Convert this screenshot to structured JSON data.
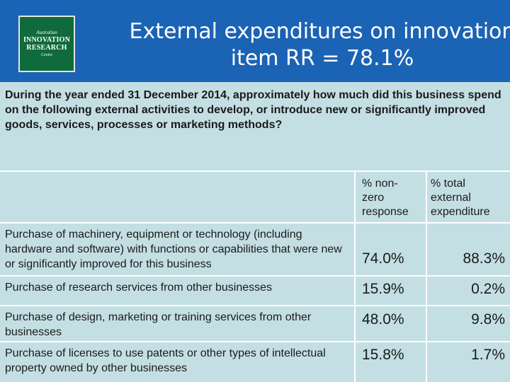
{
  "header": {
    "logo": {
      "line_top": "Australian",
      "line_mid1": "INNOVATION",
      "line_mid2": "RESEARCH",
      "line_bottom": "Centre"
    },
    "title_line1": "External expenditures on innovation",
    "title_line2": "item RR = 78.1%"
  },
  "question": "During the year ended 31 December 2014, approximately how much did this business spend on the following external activities to develop, or introduce new or significantly improved goods, services, processes or marketing methods?",
  "table": {
    "columns": [
      {
        "line1": "% non-",
        "line2": "zero",
        "line3": "response"
      },
      {
        "line1": "% total",
        "line2": "external",
        "line3": "expenditure"
      }
    ],
    "rows": [
      {
        "label": "Purchase of machinery, equipment or technology (including hardware and software) with functions or capabilities that were new or significantly improved for this business",
        "nonzero": "74.0%",
        "total": "88.3%"
      },
      {
        "label": "Purchase of research services from other businesses",
        "nonzero": "15.9%",
        "total": "0.2%"
      },
      {
        "label": "Purchase of design, marketing or training services from other businesses",
        "nonzero": "48.0%",
        "total": "9.8%"
      },
      {
        "label": "Purchase of licenses to use patents or other types of intellectual property owned by other businesses",
        "nonzero": "15.8%",
        "total": "1.7%"
      }
    ]
  },
  "colors": {
    "header_bg": "#1b63b4",
    "panel_bg": "#c4dfe4",
    "logo_bg": "#0f6a3c"
  }
}
